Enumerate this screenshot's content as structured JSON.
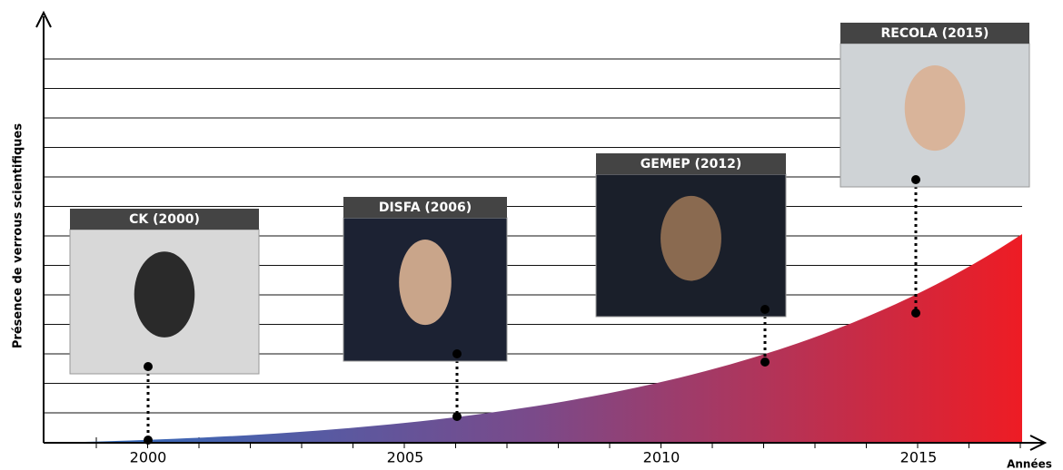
{
  "axes": {
    "y_label": "Présence de verrous scientifiques",
    "x_label": "Années",
    "x_ticks": [
      "2000",
      "2005",
      "2010",
      "2015"
    ]
  },
  "datasets": [
    {
      "label": "CK (2000)"
    },
    {
      "label": "DISFA (2006)"
    },
    {
      "label": "GEMEP (2012)"
    },
    {
      "label": "RECOLA (2015)"
    }
  ]
}
